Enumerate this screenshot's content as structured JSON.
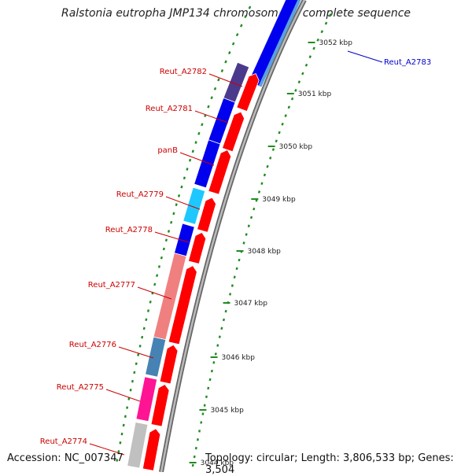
{
  "header": {
    "title": "Ralstonia eutropha JMP134 chromosome 1, complete sequence"
  },
  "footer": {
    "accession": "Accession: NC_007347",
    "topology": "Topology: circular; Length: 3,806,533 bp; Genes: 3,504"
  },
  "colors": {
    "backbone": "#999999",
    "forward_gene": "#ff0000",
    "tick": "#228b22",
    "label_red": "#cc0000",
    "label_blue": "#0000cc"
  },
  "scale": {
    "unit": "kbp",
    "labels": [
      "3052 kbp",
      "3051 kbp",
      "3050 kbp",
      "3049 kbp",
      "3048 kbp",
      "3047 kbp",
      "3046 kbp",
      "3045 kbp",
      "3044 kbp"
    ]
  },
  "genes": [
    {
      "name": "Reut_A2783",
      "color": "#0000ee"
    },
    {
      "name": "Reut_A2782",
      "color": "#4b3a8c"
    },
    {
      "name": "Reut_A2781",
      "color": "#0000ee"
    },
    {
      "name": "panB",
      "color": "#0000ee"
    },
    {
      "name": "Reut_A2779",
      "color": "#1ec8ff"
    },
    {
      "name": "Reut_A2778",
      "color": "#0000ee"
    },
    {
      "name": "Reut_A2777",
      "color": "#f08080"
    },
    {
      "name": "Reut_A2776",
      "color": "#4682b4"
    },
    {
      "name": "Reut_A2775",
      "color": "#ff1493"
    },
    {
      "name": "Reut_A2774",
      "color": "#c0c0c0"
    }
  ]
}
